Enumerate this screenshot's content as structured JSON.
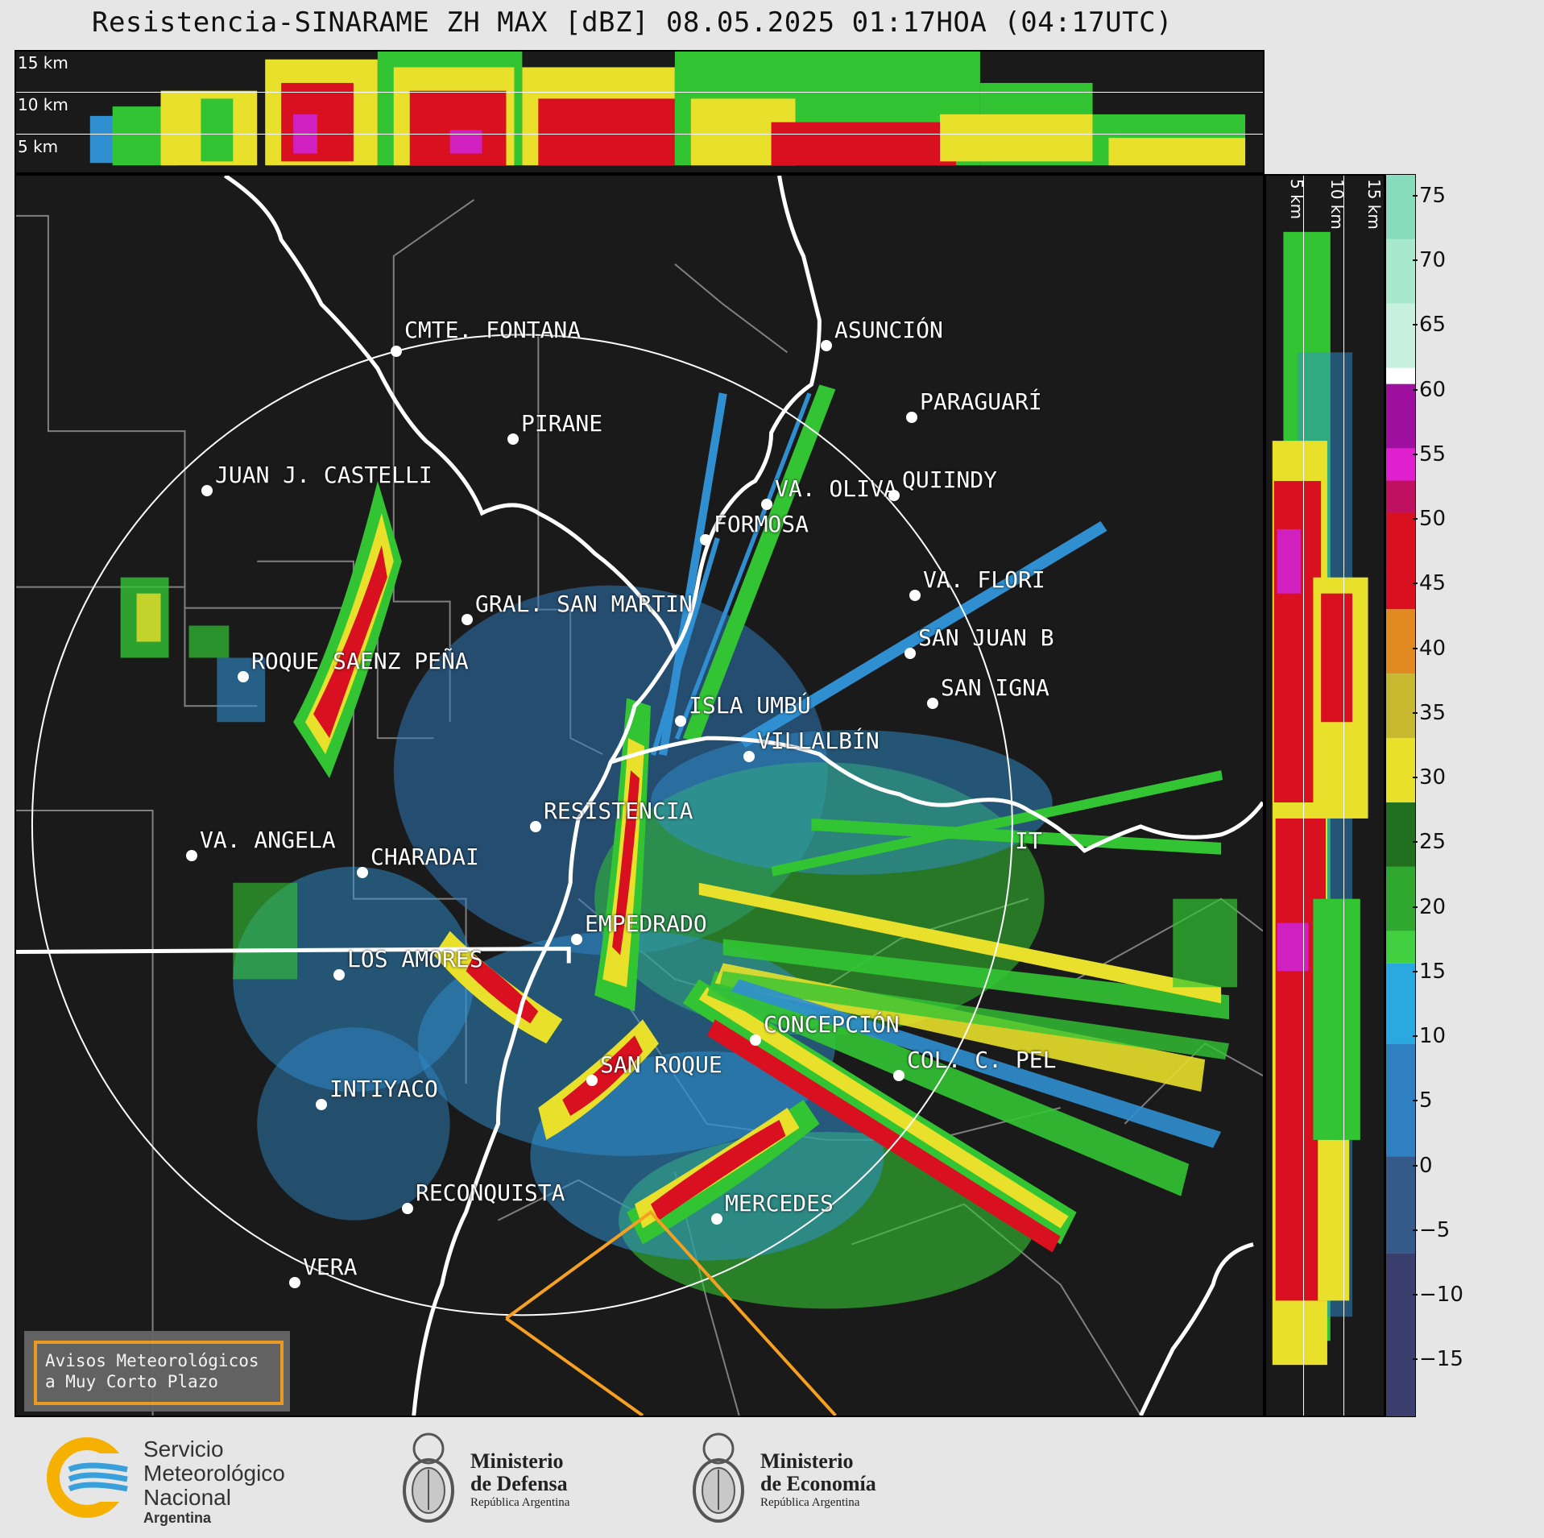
{
  "title": "Resistencia-SINARAME ZH MAX [dBZ] 08.05.2025 01:17HOA (04:17UTC)",
  "cross_section_top": {
    "altitude_labels": [
      "15 km",
      "10 km",
      "5 km"
    ]
  },
  "cross_section_right": {
    "altitude_labels": [
      "5 km",
      "10 km",
      "15 km"
    ]
  },
  "colorbar": {
    "unit": "dBZ",
    "ticks": [
      "75",
      "70",
      "65",
      "60",
      "55",
      "50",
      "45",
      "40",
      "35",
      "30",
      "25",
      "20",
      "15",
      "10",
      "5",
      "0",
      "−5",
      "−10",
      "−15"
    ],
    "range": [
      -20,
      77
    ],
    "colors": {
      "low": "#3b3f6e",
      "blue": "#2f8fd0",
      "green": "#33c433",
      "yellow": "#e8e02a",
      "orange": "#e09020",
      "red": "#d81020",
      "magenta": "#d020c0",
      "white": "#ffffff",
      "teal": "#80e0c0"
    }
  },
  "cities": [
    {
      "name": "CMTE. FONTANA"
    },
    {
      "name": "ASUNCIÓN"
    },
    {
      "name": "PARAGUARÍ"
    },
    {
      "name": "PIRANE"
    },
    {
      "name": "JUAN J. CASTELLI"
    },
    {
      "name": "VA. OLIVA"
    },
    {
      "name": "QUIINDY"
    },
    {
      "name": "FORMOSA"
    },
    {
      "name": "VA. FLORI"
    },
    {
      "name": "GRAL. SAN MARTIN"
    },
    {
      "name": "SAN JUAN B"
    },
    {
      "name": "ROQUE SAENZ PEÑA"
    },
    {
      "name": "SAN IGNA"
    },
    {
      "name": "ISLA UMBÚ"
    },
    {
      "name": "VILLALBÍN"
    },
    {
      "name": "RESISTENCIA"
    },
    {
      "name": "VA. ANGELA"
    },
    {
      "name": "CHARADAI"
    },
    {
      "name": "IT"
    },
    {
      "name": "EMPEDRADO"
    },
    {
      "name": "LOS AMORES"
    },
    {
      "name": "CONCEPCIÓN"
    },
    {
      "name": "COL. C. PEL"
    },
    {
      "name": "SAN ROQUE"
    },
    {
      "name": "INTIYACO"
    },
    {
      "name": "RECONQUISTA"
    },
    {
      "name": "MERCEDES"
    },
    {
      "name": "VERA"
    }
  ],
  "avisos": {
    "line1": "Avisos Meteorológicos",
    "line2": "a Muy Corto Plazo"
  },
  "logos": {
    "smn": {
      "line1": "Servicio",
      "line2": "Meteorológico",
      "line3": "Nacional",
      "line4": "Argentina"
    },
    "defensa": {
      "line1": "Ministerio",
      "line2": "de Defensa",
      "line3": "República Argentina"
    },
    "economia": {
      "line1": "Ministerio",
      "line2": "de Economía",
      "line3": "República Argentina"
    }
  }
}
